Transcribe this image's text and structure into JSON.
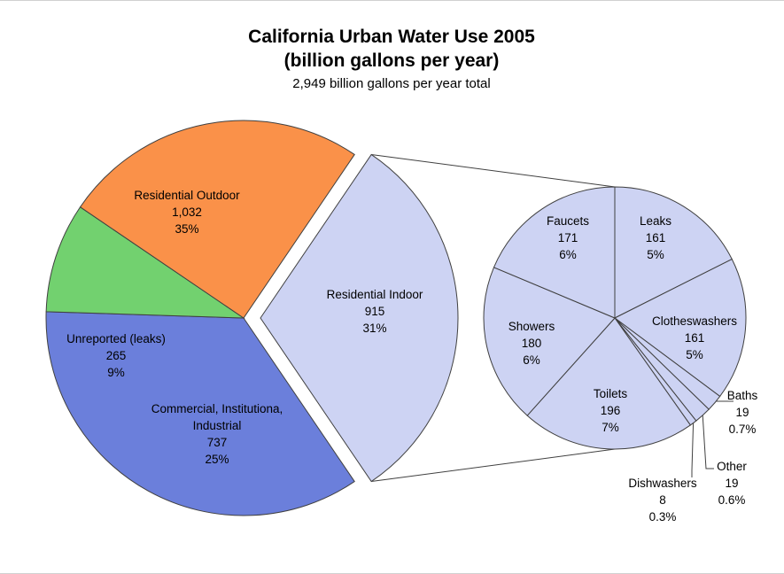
{
  "chart_data": {
    "type": "pie",
    "title_line1": "California Urban Water Use 2005",
    "title_line2": "(billion gallons per year)",
    "subtitle": "2,949 billion gallons per year total",
    "colors": {
      "residential_outdoor": "#6b7fdb",
      "unreported": "#72d16f",
      "commercial": "#fa9149",
      "residential_indoor": "#cdd3f3",
      "breakdown": "#cdd3f3",
      "outline": "#404040"
    },
    "main_pie": {
      "slices": [
        {
          "key": "residential_outdoor",
          "label": "Residential Outdoor",
          "value_text": "1,032",
          "value": 1032,
          "percent": "35%"
        },
        {
          "key": "unreported",
          "label": "Unreported (leaks)",
          "value_text": "265",
          "value": 265,
          "percent": "9%"
        },
        {
          "key": "commercial",
          "label_lines": [
            "Commercial, Institutiona,",
            "Industrial"
          ],
          "value_text": "737",
          "value": 737,
          "percent": "25%"
        },
        {
          "key": "residential_indoor",
          "label": "Residential Indoor",
          "value_text": "915",
          "value": 915,
          "percent": "31%"
        }
      ]
    },
    "breakdown_pie": {
      "parent": "Residential Indoor",
      "slices": [
        {
          "key": "leaks",
          "label": "Leaks",
          "value_text": "161",
          "value": 161,
          "percent": "5%"
        },
        {
          "key": "clotheswashers",
          "label": "Clotheswashers",
          "value_text": "161",
          "value": 161,
          "percent": "5%"
        },
        {
          "key": "baths",
          "label": "Baths",
          "value_text": "19",
          "value": 19,
          "percent": "0.7%"
        },
        {
          "key": "other",
          "label": "Other",
          "value_text": "19",
          "value": 19,
          "percent": "0.6%"
        },
        {
          "key": "dishwashers",
          "label": "Dishwashers",
          "value_text": "8",
          "value": 8,
          "percent": "0.3%"
        },
        {
          "key": "toilets",
          "label": "Toilets",
          "value_text": "196",
          "value": 196,
          "percent": "7%"
        },
        {
          "key": "showers",
          "label": "Showers",
          "value_text": "180",
          "value": 180,
          "percent": "6%"
        },
        {
          "key": "faucets",
          "label": "Faucets",
          "value_text": "171",
          "value": 171,
          "percent": "6%"
        }
      ]
    }
  }
}
